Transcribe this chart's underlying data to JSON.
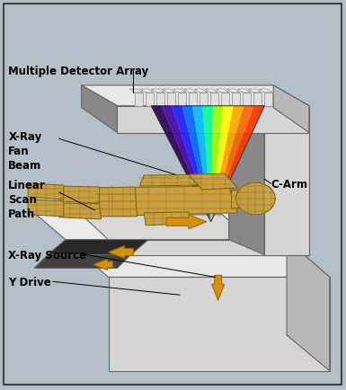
{
  "bg_color": "#b5bfc8",
  "border_color": "#444444",
  "labels": {
    "multiple_detector_array": "Multiple Detector Array",
    "xray_fan_beam": "X-Ray\nFan\nBeam",
    "linear_scan_path": "Linear\nScan\nPath",
    "xray_source": "X-Ray Source",
    "y_drive": "Y Drive",
    "c_arm": "C-Arm"
  },
  "body_color": "#c8a040",
  "body_edge": "#7a6010",
  "arrow_color": "#d4920a",
  "arrow_edge": "#a06800",
  "beam_colors": [
    "#2a0050",
    "#4400aa",
    "#1a1aff",
    "#0066ff",
    "#00bbff",
    "#00ff99",
    "#99ff00",
    "#ffff00",
    "#ffaa00",
    "#ff6600",
    "#ff3300"
  ],
  "machine_face": "#d5d5d5",
  "machine_top": "#e8e8e8",
  "machine_side": "#b8b8b8",
  "machine_dark": "#989898",
  "machine_inner": "#888888",
  "tunnel_dark": "#282828",
  "detector_face": "#e0e0e0",
  "detector_top": "#eeeeee"
}
